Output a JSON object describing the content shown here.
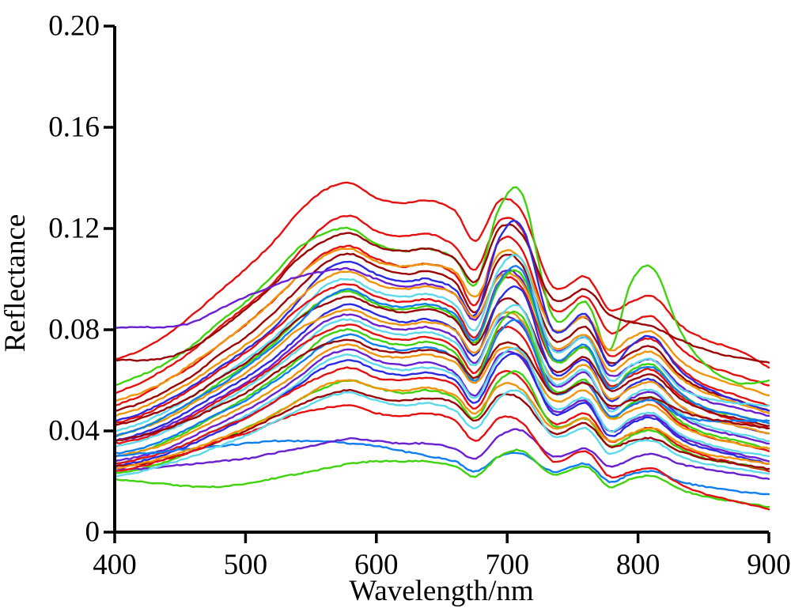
{
  "chart_data": {
    "type": "line",
    "title": "",
    "xlabel": "Wavelength/nm",
    "ylabel": "Reflectance",
    "xlim": [
      400,
      900
    ],
    "ylim": [
      0,
      0.2
    ],
    "x_tick_values": [
      400,
      500,
      600,
      700,
      800,
      900
    ],
    "x_tick_labels": [
      "400",
      "500",
      "600",
      "700",
      "800",
      "900"
    ],
    "y_tick_values": [
      0,
      0.04,
      0.08,
      0.12,
      0.16,
      0.2
    ],
    "y_tick_labels": [
      "0",
      "0.04",
      "0.08",
      "0.12",
      "0.16",
      "0.20"
    ],
    "grid": false,
    "legend": "none",
    "description": "Dense bundle of field spectral reflectance curves: green peak near 580 nm, chlorophyll absorption dip near 675 nm, sharp red-edge peak near 712 nm, narrow O2-band spike near 760 nm, secondary NIR bump near 812 nm, declining to 900 nm.",
    "value_unit": "reflectance x 0.001",
    "x": [
      400,
      420,
      440,
      460,
      480,
      500,
      520,
      540,
      560,
      580,
      600,
      620,
      640,
      660,
      676,
      694,
      712,
      735,
      760,
      778,
      795,
      812,
      832,
      852,
      876,
      900
    ],
    "palette": {
      "red": "#e41111",
      "darkred": "#9a0606",
      "orange": "#ef940b",
      "green": "#3ed30c",
      "cyan": "#5cd9ea",
      "skyblue": "#0f7ef0",
      "blue": "#2a2ae2",
      "purple": "#6a1fd0"
    },
    "series": [
      {
        "color": "red",
        "values": [
          68,
          72,
          78,
          86,
          95,
          104,
          114,
          126,
          135,
          138,
          132,
          130,
          131,
          127,
          115,
          131,
          126,
          97,
          101,
          88,
          91,
          93,
          82,
          76,
          72,
          65
        ]
      },
      {
        "color": "red",
        "values": [
          55,
          59,
          65,
          72,
          81,
          89,
          98,
          110,
          121,
          125,
          119,
          117,
          118,
          113,
          104,
          123,
          119,
          88,
          93,
          79,
          83,
          85,
          73,
          66,
          62,
          58
        ]
      },
      {
        "color": "green",
        "values": [
          58,
          62,
          67,
          74,
          83,
          91,
          101,
          112,
          118,
          120,
          114,
          111,
          112,
          108,
          98,
          128,
          133,
          85,
          91,
          72,
          99,
          104,
          80,
          66,
          59,
          60
        ]
      },
      {
        "color": "darkred",
        "values": [
          68,
          68,
          69,
          73,
          80,
          88,
          97,
          108,
          115,
          118,
          113,
          111,
          112,
          108,
          99,
          120,
          117,
          92,
          96,
          86,
          83,
          81,
          76,
          72,
          69,
          67
        ]
      },
      {
        "color": "red",
        "values": [
          50,
          54,
          60,
          66,
          74,
          82,
          91,
          101,
          110,
          113,
          108,
          105,
          106,
          102,
          90,
          115,
          111,
          80,
          85,
          70,
          74,
          76,
          65,
          58,
          54,
          50
        ]
      },
      {
        "color": "orange",
        "values": [
          52,
          55,
          60,
          67,
          74,
          82,
          91,
          101,
          109,
          112,
          107,
          105,
          106,
          103,
          93,
          110,
          107,
          80,
          85,
          72,
          77,
          79,
          68,
          62,
          58,
          54
        ]
      },
      {
        "color": "darkred",
        "values": [
          48,
          51,
          56,
          62,
          70,
          77,
          86,
          96,
          106,
          110,
          105,
          102,
          103,
          99,
          87,
          108,
          105,
          76,
          81,
          67,
          71,
          73,
          62,
          56,
          52,
          48
        ]
      },
      {
        "color": "blue",
        "values": [
          44,
          47,
          52,
          58,
          65,
          72,
          80,
          91,
          103,
          107,
          102,
          99,
          100,
          96,
          86,
          116,
          120,
          80,
          86,
          66,
          74,
          77,
          64,
          57,
          52,
          48
        ]
      },
      {
        "color": "purple",
        "values": [
          81,
          81,
          81,
          83,
          88,
          93,
          97,
          101,
          103,
          104,
          100,
          97,
          98,
          94,
          84,
          102,
          99,
          72,
          77,
          62,
          66,
          68,
          58,
          52,
          49,
          46
        ]
      },
      {
        "color": "orange",
        "values": [
          46,
          49,
          54,
          60,
          67,
          74,
          82,
          92,
          100,
          103,
          98,
          96,
          97,
          94,
          85,
          101,
          98,
          73,
          78,
          64,
          69,
          71,
          61,
          55,
          51,
          47
        ]
      },
      {
        "color": "cyan",
        "values": [
          40,
          43,
          48,
          54,
          61,
          68,
          76,
          86,
          97,
          100,
          95,
          93,
          94,
          90,
          80,
          104,
          107,
          72,
          77,
          60,
          66,
          68,
          57,
          53,
          51,
          50
        ]
      },
      {
        "color": "red",
        "values": [
          43,
          46,
          51,
          57,
          64,
          71,
          79,
          88,
          95,
          98,
          93,
          91,
          92,
          88,
          77,
          99,
          96,
          68,
          73,
          58,
          62,
          64,
          54,
          48,
          44,
          41
        ]
      },
      {
        "color": "green",
        "values": [
          38,
          41,
          46,
          52,
          59,
          66,
          74,
          84,
          92,
          95,
          90,
          88,
          89,
          85,
          75,
          98,
          101,
          68,
          73,
          57,
          64,
          66,
          55,
          49,
          46,
          43
        ]
      },
      {
        "color": "darkred",
        "values": [
          42,
          45,
          49,
          54,
          61,
          67,
          75,
          84,
          90,
          93,
          89,
          87,
          88,
          84,
          74,
          91,
          88,
          64,
          69,
          56,
          60,
          62,
          53,
          48,
          45,
          42
        ]
      },
      {
        "color": "blue",
        "values": [
          36,
          39,
          43,
          49,
          55,
          61,
          68,
          77,
          86,
          90,
          86,
          83,
          84,
          80,
          70,
          92,
          95,
          63,
          68,
          52,
          58,
          60,
          50,
          45,
          42,
          39
        ]
      },
      {
        "color": "orange",
        "values": [
          38,
          41,
          45,
          51,
          57,
          63,
          71,
          80,
          85,
          88,
          84,
          82,
          83,
          80,
          71,
          86,
          83,
          61,
          66,
          53,
          57,
          59,
          50,
          45,
          42,
          39
        ]
      },
      {
        "color": "purple",
        "values": [
          36,
          38,
          42,
          47,
          53,
          59,
          66,
          75,
          83,
          86,
          82,
          80,
          81,
          77,
          67,
          84,
          81,
          58,
          63,
          49,
          53,
          55,
          46,
          41,
          38,
          35
        ]
      },
      {
        "color": "cyan",
        "values": [
          34,
          36,
          40,
          45,
          51,
          57,
          64,
          72,
          81,
          84,
          80,
          78,
          79,
          75,
          66,
          85,
          88,
          59,
          64,
          48,
          54,
          56,
          47,
          42,
          39,
          36
        ]
      },
      {
        "color": "red",
        "values": [
          35,
          37,
          41,
          46,
          52,
          58,
          65,
          73,
          79,
          82,
          78,
          76,
          77,
          73,
          63,
          80,
          77,
          55,
          59,
          46,
          50,
          52,
          43,
          38,
          35,
          32
        ]
      },
      {
        "color": "green",
        "values": [
          30,
          32,
          36,
          41,
          47,
          53,
          60,
          68,
          77,
          80,
          76,
          74,
          75,
          71,
          61,
          82,
          85,
          56,
          60,
          45,
          51,
          53,
          44,
          39,
          36,
          33
        ]
      },
      {
        "color": "skyblue",
        "values": [
          31,
          33,
          37,
          42,
          47,
          52,
          59,
          66,
          74,
          78,
          74,
          72,
          73,
          69,
          60,
          79,
          82,
          55,
          59,
          46,
          50,
          52,
          46,
          44,
          44,
          44
        ]
      },
      {
        "color": "darkred",
        "values": [
          36,
          38,
          41,
          45,
          50,
          55,
          62,
          69,
          74,
          76,
          72,
          71,
          72,
          69,
          61,
          74,
          72,
          55,
          59,
          50,
          52,
          53,
          48,
          45,
          43,
          41
        ]
      },
      {
        "color": "orange",
        "values": [
          30,
          32,
          35,
          40,
          45,
          50,
          56,
          63,
          71,
          74,
          70,
          69,
          70,
          67,
          59,
          72,
          70,
          52,
          56,
          45,
          48,
          50,
          42,
          38,
          35,
          33
        ]
      },
      {
        "color": "purple",
        "values": [
          28,
          30,
          33,
          38,
          43,
          48,
          54,
          61,
          69,
          72,
          68,
          66,
          67,
          63,
          54,
          70,
          68,
          48,
          52,
          40,
          44,
          46,
          38,
          34,
          31,
          28
        ]
      },
      {
        "color": "cyan",
        "values": [
          27,
          29,
          32,
          36,
          41,
          46,
          52,
          59,
          67,
          70,
          66,
          64,
          65,
          62,
          53,
          69,
          71,
          49,
          53,
          40,
          45,
          47,
          39,
          35,
          32,
          30
        ]
      },
      {
        "color": "blue",
        "values": [
          26,
          28,
          31,
          35,
          40,
          45,
          51,
          58,
          65,
          68,
          64,
          62,
          63,
          60,
          51,
          67,
          69,
          47,
          51,
          38,
          43,
          45,
          37,
          33,
          30,
          27
        ]
      },
      {
        "color": "red",
        "values": [
          27,
          29,
          32,
          36,
          41,
          45,
          51,
          57,
          62,
          65,
          61,
          60,
          61,
          58,
          49,
          63,
          60,
          43,
          47,
          36,
          39,
          41,
          34,
          30,
          27,
          24
        ]
      },
      {
        "color": "green",
        "values": [
          23,
          25,
          28,
          32,
          36,
          41,
          46,
          52,
          57,
          60,
          57,
          55,
          56,
          53,
          45,
          60,
          62,
          42,
          45,
          34,
          38,
          40,
          33,
          29,
          27,
          25
        ]
      },
      {
        "color": "darkred",
        "values": [
          26,
          27,
          29,
          32,
          36,
          40,
          45,
          50,
          54,
          56,
          53,
          52,
          53,
          51,
          44,
          54,
          52,
          39,
          43,
          34,
          36,
          37,
          32,
          29,
          27,
          25
        ]
      },
      {
        "color": "skyblue",
        "values": [
          30,
          31,
          32,
          33,
          34,
          35,
          36,
          36,
          36,
          35,
          34,
          32,
          30,
          28,
          24,
          30,
          31,
          24,
          27,
          20,
          23,
          24,
          20,
          18,
          16,
          15
        ]
      },
      {
        "color": "green",
        "values": [
          21,
          20,
          19,
          18,
          18,
          19,
          21,
          23,
          25,
          27,
          28,
          28,
          28,
          26,
          22,
          30,
          32,
          23,
          26,
          18,
          21,
          22,
          17,
          14,
          12,
          10
        ]
      },
      {
        "color": "purple",
        "values": [
          25,
          25,
          26,
          27,
          28,
          29,
          31,
          33,
          35,
          37,
          36,
          35,
          35,
          33,
          29,
          38,
          40,
          30,
          33,
          26,
          29,
          31,
          27,
          25,
          23,
          21
        ]
      },
      {
        "color": "red",
        "values": [
          24,
          26,
          29,
          32,
          36,
          39,
          43,
          47,
          49,
          50,
          47,
          46,
          47,
          44,
          36,
          45,
          43,
          28,
          32,
          22,
          24,
          25,
          19,
          15,
          12,
          9
        ]
      },
      {
        "color": "cyan",
        "values": [
          22,
          24,
          27,
          30,
          34,
          38,
          43,
          48,
          53,
          55,
          52,
          50,
          51,
          48,
          41,
          53,
          55,
          38,
          41,
          31,
          35,
          36,
          30,
          27,
          25,
          23
        ]
      },
      {
        "color": "orange",
        "values": [
          25,
          27,
          30,
          33,
          37,
          41,
          46,
          52,
          58,
          60,
          57,
          56,
          57,
          54,
          47,
          58,
          56,
          41,
          45,
          36,
          39,
          41,
          35,
          31,
          29,
          27
        ]
      },
      {
        "color": "skyblue",
        "values": [
          38,
          41,
          46,
          52,
          58,
          65,
          73,
          82,
          92,
          96,
          91,
          89,
          90,
          86,
          76,
          99,
          103,
          69,
          74,
          57,
          63,
          65,
          55,
          49,
          46,
          43
        ]
      }
    ]
  },
  "frame": {
    "axis_color": "#000000"
  }
}
